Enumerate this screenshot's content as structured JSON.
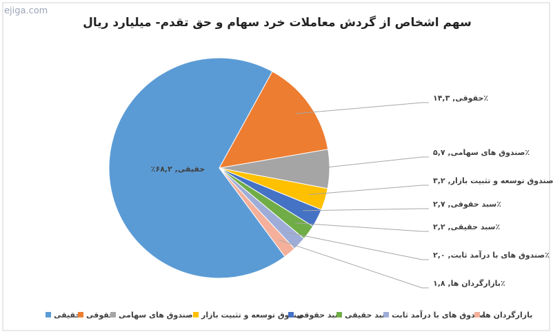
{
  "watermark": "ejiga.com",
  "chart_data": {
    "type": "pie",
    "title": "سهم اشخاص از گردش معاملات خرد سهام و حق تقدم- میلیارد ریال",
    "categories": [
      "حقیقی",
      "حقوقی",
      "صندوق های سهامی",
      "صندوق توسعه و تثبیت بازار",
      "سبد حقوقی",
      "سبد حقیقی",
      "صندوق های با درآمد ثابت",
      "بازارگردان ها"
    ],
    "values": [
      68.2,
      14.3,
      5.7,
      3.2,
      2.7,
      2.2,
      2.0,
      1.8
    ],
    "value_labels": [
      "حقیقی, ۶۸,۲٪",
      "حقوقی, ۱۴,۳٪",
      "صندوق های سهامی, ۵,۷٪",
      "صندوق توسعه و تثبیت بازار, ۳,۲٪",
      "سبد حقوقی, ۲,۷٪",
      "سبد حقیقی, ۲,۲٪",
      "صندوق های با درآمد ثابت, ۲,۰٪",
      "بازارگردان ها, ۱,۸٪"
    ],
    "colors": [
      "#5b9bd5",
      "#ed7d31",
      "#a5a5a5",
      "#ffc000",
      "#4472c4",
      "#70ad47",
      "#9eadd8",
      "#f4b09a"
    ],
    "legend": "bottom"
  }
}
